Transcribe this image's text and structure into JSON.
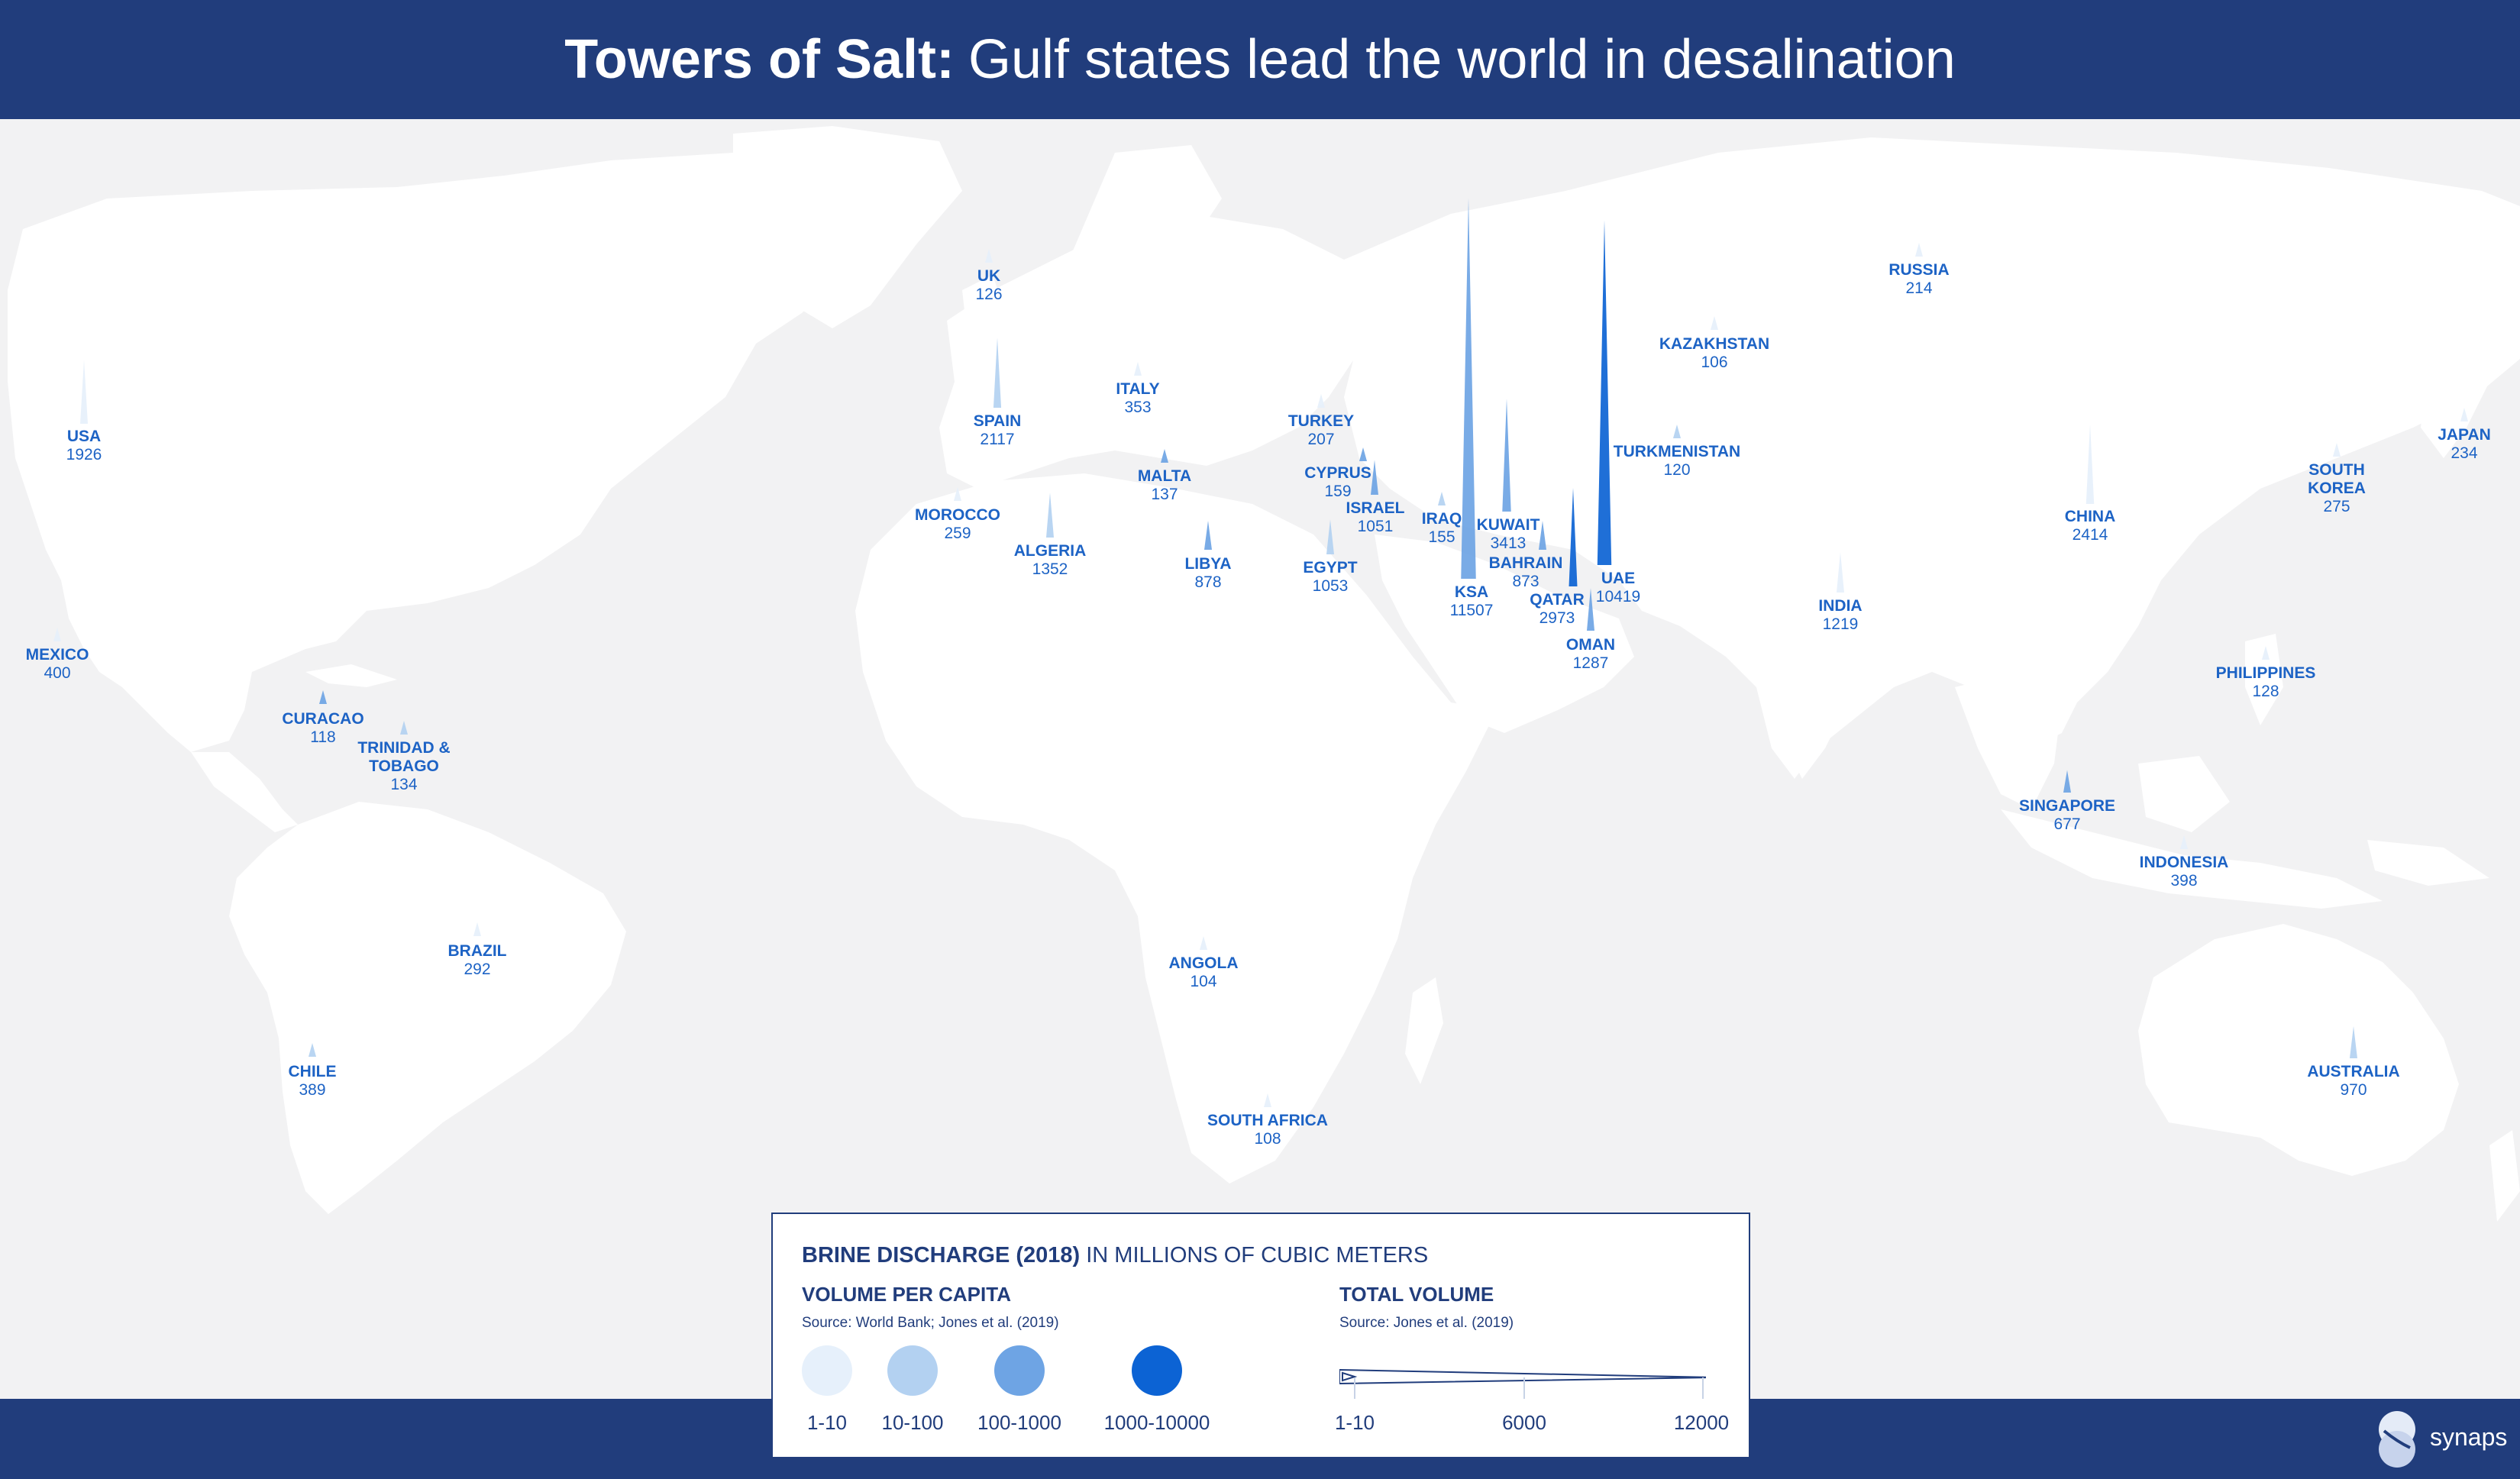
{
  "header": {
    "title_bold": "Towers of Salt:",
    "title_rest": "Gulf states lead the world in desalination"
  },
  "colors": {
    "navy": "#213d7c",
    "map_bg": "#f2f2f3",
    "land": "#ffffff",
    "label": "#1d63c5",
    "tier_1_10": "#e6f0fb",
    "tier_10_100": "#b3d1f1",
    "tier_100_1000": "#6ea4e4",
    "tier_1000_10000": "#0c63d4"
  },
  "countries": [
    {
      "name": "USA",
      "value": "1926",
      "tier": 1
    },
    {
      "name": "MEXICO",
      "value": "400",
      "tier": 1
    },
    {
      "name": "CURACAO",
      "value": "118",
      "tier": 3
    },
    {
      "name": "TRINIDAD & TOBAGO",
      "value": "134",
      "tier": 2
    },
    {
      "name": "BRAZIL",
      "value": "292",
      "tier": 1
    },
    {
      "name": "CHILE",
      "value": "389",
      "tier": 2
    },
    {
      "name": "UK",
      "value": "126",
      "tier": 1
    },
    {
      "name": "SPAIN",
      "value": "2117",
      "tier": 2
    },
    {
      "name": "MOROCCO",
      "value": "259",
      "tier": 1
    },
    {
      "name": "ALGERIA",
      "value": "1352",
      "tier": 2
    },
    {
      "name": "ITALY",
      "value": "353",
      "tier": 1
    },
    {
      "name": "MALTA",
      "value": "137",
      "tier": 3
    },
    {
      "name": "LIBYA",
      "value": "878",
      "tier": 3
    },
    {
      "name": "TURKEY",
      "value": "207",
      "tier": 1
    },
    {
      "name": "CYPRUS",
      "value": "159",
      "tier": 3
    },
    {
      "name": "ISRAEL",
      "value": "1051",
      "tier": 3
    },
    {
      "name": "EGYPT",
      "value": "1053",
      "tier": 2
    },
    {
      "name": "IRAQ",
      "value": "155",
      "tier": 2
    },
    {
      "name": "KSA",
      "value": "11507",
      "tier": 3
    },
    {
      "name": "KUWAIT",
      "value": "3413",
      "tier": 3
    },
    {
      "name": "BAHRAIN",
      "value": "873",
      "tier": 3
    },
    {
      "name": "QATAR",
      "value": "2973",
      "tier": 4
    },
    {
      "name": "OMAN",
      "value": "1287",
      "tier": 3
    },
    {
      "name": "UAE",
      "value": "10419",
      "tier": 4
    },
    {
      "name": "TURKMENISTAN",
      "value": "120",
      "tier": 2
    },
    {
      "name": "KAZAKHSTAN",
      "value": "106",
      "tier": 1
    },
    {
      "name": "RUSSIA",
      "value": "214",
      "tier": 1
    },
    {
      "name": "ANGOLA",
      "value": "104",
      "tier": 1
    },
    {
      "name": "SOUTH AFRICA",
      "value": "108",
      "tier": 1
    },
    {
      "name": "INDIA",
      "value": "1219",
      "tier": 1
    },
    {
      "name": "CHINA",
      "value": "2414",
      "tier": 1
    },
    {
      "name": "SOUTH KOREA",
      "value": "275",
      "tier": 1
    },
    {
      "name": "JAPAN",
      "value": "234",
      "tier": 1
    },
    {
      "name": "PHILIPPINES",
      "value": "128",
      "tier": 1
    },
    {
      "name": "SINGAPORE",
      "value": "677",
      "tier": 3
    },
    {
      "name": "INDONESIA",
      "value": "398",
      "tier": 1
    },
    {
      "name": "AUSTRALIA",
      "value": "970",
      "tier": 2
    }
  ],
  "legend": {
    "title_bold": "BRINE DISCHARGE (2018)",
    "title_rest": "IN MILLIONS OF CUBIC METERS",
    "per_capita_heading": "VOLUME PER CAPITA",
    "per_capita_source": "Source: World Bank; Jones et al. (2019)",
    "total_heading": "TOTAL VOLUME",
    "total_source": "Source: Jones et al. (2019)",
    "tiers": [
      {
        "label": "1-10",
        "color": "#e6f0fb"
      },
      {
        "label": "10-100",
        "color": "#b3d1f1"
      },
      {
        "label": "100-1000",
        "color": "#6ea4e4"
      },
      {
        "label": "1000-10000",
        "color": "#0c63d4"
      }
    ],
    "scale_labels": [
      "1-10",
      "6000",
      "12000"
    ]
  },
  "brand": {
    "name": "synaps",
    "icon": "synaps-logo-icon"
  }
}
